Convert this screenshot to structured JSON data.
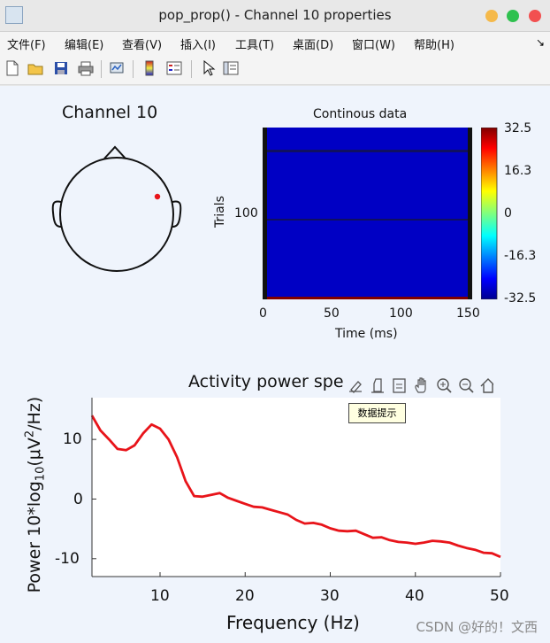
{
  "window": {
    "title": "pop_prop() - Channel 10 properties"
  },
  "menu": [
    "文件(F)",
    "编辑(E)",
    "查看(V)",
    "插入(I)",
    "工具(T)",
    "桌面(D)",
    "窗口(W)",
    "帮助(H)"
  ],
  "colors": {
    "figure_bg": "#eff4fc",
    "electrode": "#e8141a",
    "psd_line": "#e8141a"
  },
  "topo": {
    "title": "Channel 10"
  },
  "erpimage": {
    "title": "Continous data",
    "xlabel": "Time (ms)",
    "ylabel": "Trials",
    "xticks": [
      "0",
      "50",
      "100",
      "150"
    ],
    "yticks": [
      "100"
    ],
    "xlim": [
      0,
      150
    ],
    "colorbar_ticks": [
      "32.5",
      "16.3",
      "0",
      "-16.3",
      "-32.5"
    ],
    "colorbar_range": [
      -32.5,
      32.5
    ]
  },
  "chart_data": {
    "type": "line",
    "title": "Activity power spe",
    "xlabel": "Frequency (Hz)",
    "ylabel_prefix": "Power 10*log",
    "ylabel_sub": "10",
    "ylabel_unit": "(μV",
    "ylabel_sup": "2",
    "ylabel_end": "/Hz)",
    "xlim": [
      2,
      50
    ],
    "ylim": [
      -13,
      17
    ],
    "xticks": [
      "10",
      "20",
      "30",
      "40",
      "50"
    ],
    "yticks": [
      "10",
      "0",
      "-10"
    ],
    "series": [
      {
        "x": [
          2,
          3,
          4,
          5,
          6,
          7,
          8,
          9,
          10,
          11,
          12,
          13,
          14,
          15,
          16,
          17,
          18,
          19,
          20,
          21,
          22,
          23,
          24,
          25,
          26,
          27,
          28,
          29,
          30,
          31,
          32,
          33,
          34,
          35,
          36,
          37,
          38,
          39,
          40,
          41,
          42,
          43,
          44,
          45,
          46,
          47,
          48,
          49,
          50
        ],
        "y": [
          14,
          11.5,
          10,
          8.4,
          8.2,
          9,
          11,
          12.5,
          11.8,
          10,
          7,
          3,
          0.5,
          0.4,
          0.7,
          1.0,
          0.2,
          -0.3,
          -0.8,
          -1.3,
          -1.4,
          -1.8,
          -2.2,
          -2.6,
          -3.5,
          -4.1,
          -4.0,
          -4.3,
          -4.9,
          -5.3,
          -5.4,
          -5.3,
          -5.9,
          -6.5,
          -6.4,
          -6.9,
          -7.2,
          -7.3,
          -7.5,
          -7.3,
          -7.0,
          -7.1,
          -7.3,
          -7.8,
          -8.2,
          -8.5,
          -9.0,
          -9.1,
          -9.7
        ]
      }
    ]
  },
  "axes_toolbar": [
    "brush-icon",
    "datatip-icon",
    "export-icon",
    "pan-icon",
    "zoom-in-icon",
    "zoom-out-icon",
    "home-icon"
  ],
  "datatip": {
    "label": "数据提示"
  },
  "watermark": "CSDN @好的！文西"
}
